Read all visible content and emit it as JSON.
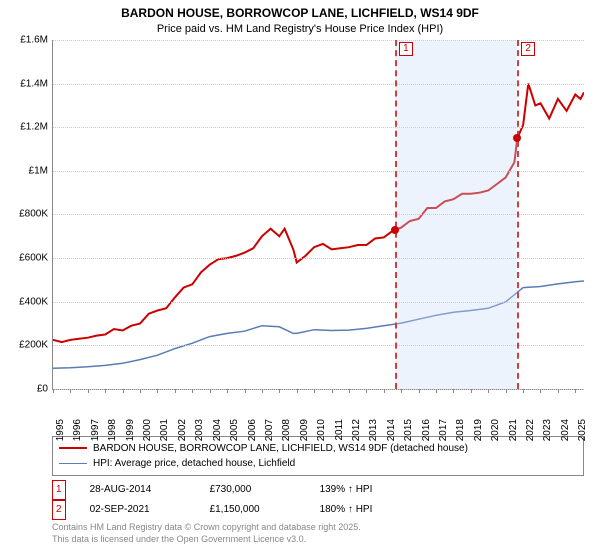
{
  "title": "BARDON HOUSE, BORROWCOP LANE, LICHFIELD, WS14 9DF",
  "subtitle": "Price paid vs. HM Land Registry's House Price Index (HPI)",
  "chart": {
    "type": "line",
    "background_color": "#ffffff",
    "grid_color": "#cccccc",
    "axis_color": "#888888",
    "xlim": [
      1995,
      2025.5
    ],
    "ylim": [
      0,
      1600000
    ],
    "ytick_step": 200000,
    "y_ticks": [
      {
        "v": 0,
        "label": "£0"
      },
      {
        "v": 200000,
        "label": "£200K"
      },
      {
        "v": 400000,
        "label": "£400K"
      },
      {
        "v": 600000,
        "label": "£600K"
      },
      {
        "v": 800000,
        "label": "£800K"
      },
      {
        "v": 1000000,
        "label": "£1M"
      },
      {
        "v": 1200000,
        "label": "£1.2M"
      },
      {
        "v": 1400000,
        "label": "£1.4M"
      },
      {
        "v": 1600000,
        "label": "£1.6M"
      }
    ],
    "x_ticks": [
      1995,
      1996,
      1997,
      1998,
      1999,
      2000,
      2001,
      2002,
      2003,
      2004,
      2005,
      2006,
      2007,
      2008,
      2009,
      2010,
      2011,
      2012,
      2013,
      2014,
      2015,
      2016,
      2017,
      2018,
      2019,
      2020,
      2021,
      2022,
      2023,
      2024,
      2025
    ],
    "band": {
      "from": 2014.65,
      "to": 2021.67,
      "color": "rgba(200,220,245,0.35)"
    },
    "markers": [
      {
        "id": "1",
        "x": 2014.65,
        "color": "#d04040",
        "point": {
          "y": 730000,
          "fill": "#cc0000"
        }
      },
      {
        "id": "2",
        "x": 2021.67,
        "color": "#d04040",
        "point": {
          "y": 1150000,
          "fill": "#cc0000"
        }
      }
    ],
    "series": {
      "price_paid": {
        "label": "BARDON HOUSE, BORROWCOP LANE, LICHFIELD, WS14 9DF (detached house)",
        "color": "#cc0000",
        "line_width": 2,
        "points": [
          [
            1995,
            225000
          ],
          [
            1995.5,
            215000
          ],
          [
            1996,
            225000
          ],
          [
            1996.5,
            230000
          ],
          [
            1997,
            235000
          ],
          [
            1997.5,
            245000
          ],
          [
            1998,
            250000
          ],
          [
            1998.5,
            275000
          ],
          [
            1999,
            268000
          ],
          [
            1999.5,
            290000
          ],
          [
            2000,
            300000
          ],
          [
            2000.5,
            345000
          ],
          [
            2001,
            360000
          ],
          [
            2001.5,
            370000
          ],
          [
            2002,
            420000
          ],
          [
            2002.5,
            465000
          ],
          [
            2003,
            480000
          ],
          [
            2003.5,
            535000
          ],
          [
            2004,
            570000
          ],
          [
            2004.5,
            595000
          ],
          [
            2005,
            600000
          ],
          [
            2005.5,
            610000
          ],
          [
            2006,
            625000
          ],
          [
            2006.5,
            645000
          ],
          [
            2007,
            700000
          ],
          [
            2007.5,
            735000
          ],
          [
            2008,
            700000
          ],
          [
            2008.3,
            735000
          ],
          [
            2008.8,
            640000
          ],
          [
            2009,
            580000
          ],
          [
            2009.5,
            610000
          ],
          [
            2010,
            650000
          ],
          [
            2010.5,
            665000
          ],
          [
            2011,
            640000
          ],
          [
            2011.5,
            645000
          ],
          [
            2012,
            650000
          ],
          [
            2012.5,
            660000
          ],
          [
            2013,
            660000
          ],
          [
            2013.5,
            690000
          ],
          [
            2014,
            695000
          ],
          [
            2014.5,
            725000
          ],
          [
            2014.65,
            730000
          ],
          [
            2015,
            740000
          ],
          [
            2015.5,
            770000
          ],
          [
            2016,
            780000
          ],
          [
            2016.5,
            830000
          ],
          [
            2017,
            830000
          ],
          [
            2017.5,
            860000
          ],
          [
            2018,
            870000
          ],
          [
            2018.5,
            895000
          ],
          [
            2019,
            895000
          ],
          [
            2019.5,
            900000
          ],
          [
            2020,
            910000
          ],
          [
            2020.5,
            940000
          ],
          [
            2021,
            970000
          ],
          [
            2021.5,
            1040000
          ],
          [
            2021.67,
            1150000
          ],
          [
            2022,
            1210000
          ],
          [
            2022.3,
            1400000
          ],
          [
            2022.7,
            1300000
          ],
          [
            2023,
            1310000
          ],
          [
            2023.5,
            1240000
          ],
          [
            2024,
            1330000
          ],
          [
            2024.5,
            1275000
          ],
          [
            2025,
            1350000
          ],
          [
            2025.3,
            1330000
          ],
          [
            2025.5,
            1360000
          ]
        ]
      },
      "hpi": {
        "label": "HPI: Average price, detached house, Lichfield",
        "color": "#5b7bb5",
        "line_width": 1.5,
        "points": [
          [
            1995,
            95000
          ],
          [
            1996,
            97000
          ],
          [
            1997,
            102000
          ],
          [
            1998,
            108000
          ],
          [
            1999,
            118000
          ],
          [
            2000,
            135000
          ],
          [
            2001,
            155000
          ],
          [
            2002,
            185000
          ],
          [
            2003,
            210000
          ],
          [
            2004,
            240000
          ],
          [
            2005,
            255000
          ],
          [
            2006,
            265000
          ],
          [
            2007,
            290000
          ],
          [
            2008,
            285000
          ],
          [
            2008.8,
            255000
          ],
          [
            2009,
            255000
          ],
          [
            2010,
            272000
          ],
          [
            2011,
            268000
          ],
          [
            2012,
            270000
          ],
          [
            2013,
            278000
          ],
          [
            2014,
            290000
          ],
          [
            2015,
            302000
          ],
          [
            2016,
            320000
          ],
          [
            2017,
            338000
          ],
          [
            2018,
            352000
          ],
          [
            2019,
            360000
          ],
          [
            2020,
            370000
          ],
          [
            2021,
            400000
          ],
          [
            2022,
            465000
          ],
          [
            2023,
            470000
          ],
          [
            2024,
            482000
          ],
          [
            2025,
            492000
          ],
          [
            2025.5,
            495000
          ]
        ]
      }
    }
  },
  "legend": [
    {
      "color": "#cc0000",
      "width": 2,
      "label_key": "chart.series.price_paid.label"
    },
    {
      "color": "#5b7bb5",
      "width": 1.5,
      "label_key": "chart.series.hpi.label"
    }
  ],
  "events": [
    {
      "badge": "1",
      "date": "28-AUG-2014",
      "price": "£730,000",
      "hpi": "139% ↑ HPI"
    },
    {
      "badge": "2",
      "date": "02-SEP-2021",
      "price": "£1,150,000",
      "hpi": "180% ↑ HPI"
    }
  ],
  "credits": {
    "line1": "Contains HM Land Registry data © Crown copyright and database right 2025.",
    "line2": "This data is licensed under the Open Government Licence v3.0."
  }
}
